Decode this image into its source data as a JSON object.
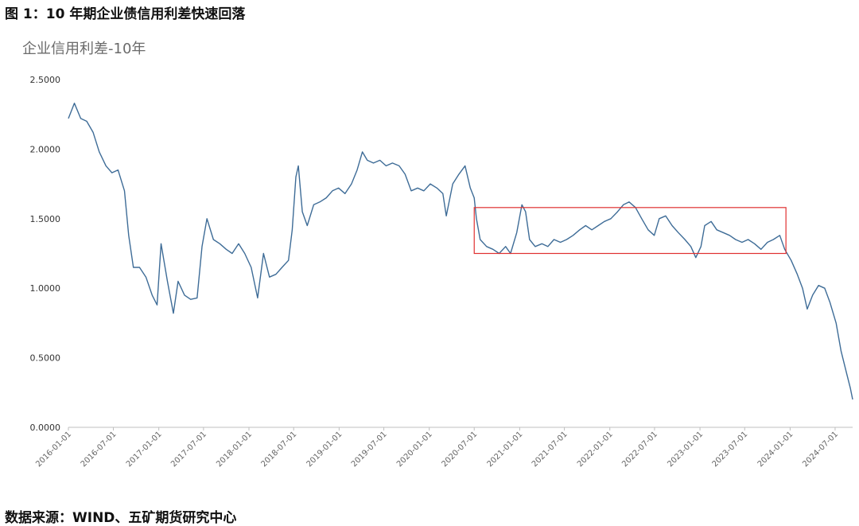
{
  "figure": {
    "caption": "图 1：10 年期企业债信用利差快速回落",
    "source": "数据来源：WIND、五矿期货研究中心"
  },
  "chart_data": {
    "type": "line",
    "title": "企业信用利差-10年",
    "xlabel": "",
    "ylabel": "",
    "ylim": [
      0,
      2.5
    ],
    "yticks": [
      "0.0000",
      "0.5000",
      "1.0000",
      "1.5000",
      "2.0000",
      "2.5000"
    ],
    "xticks": [
      "2016-01-01",
      "2016-07-01",
      "2017-01-01",
      "2017-07-01",
      "2018-01-01",
      "2018-07-01",
      "2019-01-01",
      "2019-07-01",
      "2020-01-01",
      "2020-07-01",
      "2021-01-01",
      "2021-07-01",
      "2022-01-01",
      "2022-07-01",
      "2023-01-01",
      "2023-07-01",
      "2024-01-01",
      "2024-07-01"
    ],
    "grid": false,
    "line_color": "#3e6c97",
    "highlight_box": {
      "x_start": "2020-07-01",
      "x_end": "2023-12-15",
      "y_low": 1.25,
      "y_high": 1.58,
      "color": "#e03030"
    },
    "series": [
      {
        "values": [
          [
            "2016-01-01",
            2.22
          ],
          [
            "2016-01-25",
            2.33
          ],
          [
            "2016-02-20",
            2.22
          ],
          [
            "2016-03-15",
            2.2
          ],
          [
            "2016-04-10",
            2.12
          ],
          [
            "2016-05-05",
            1.98
          ],
          [
            "2016-06-01",
            1.88
          ],
          [
            "2016-06-25",
            1.83
          ],
          [
            "2016-07-20",
            1.85
          ],
          [
            "2016-08-15",
            1.7
          ],
          [
            "2016-09-01",
            1.38
          ],
          [
            "2016-09-20",
            1.15
          ],
          [
            "2016-10-15",
            1.15
          ],
          [
            "2016-11-10",
            1.08
          ],
          [
            "2016-12-05",
            0.95
          ],
          [
            "2016-12-25",
            0.88
          ],
          [
            "2017-01-10",
            1.32
          ],
          [
            "2017-02-05",
            1.05
          ],
          [
            "2017-03-01",
            0.82
          ],
          [
            "2017-03-20",
            1.05
          ],
          [
            "2017-04-15",
            0.95
          ],
          [
            "2017-05-10",
            0.92
          ],
          [
            "2017-06-05",
            0.93
          ],
          [
            "2017-06-25",
            1.3
          ],
          [
            "2017-07-15",
            1.5
          ],
          [
            "2017-08-10",
            1.35
          ],
          [
            "2017-09-05",
            1.32
          ],
          [
            "2017-10-01",
            1.28
          ],
          [
            "2017-10-25",
            1.25
          ],
          [
            "2017-11-20",
            1.32
          ],
          [
            "2017-12-15",
            1.25
          ],
          [
            "2018-01-10",
            1.15
          ],
          [
            "2018-02-05",
            0.93
          ],
          [
            "2018-03-01",
            1.25
          ],
          [
            "2018-03-25",
            1.08
          ],
          [
            "2018-04-20",
            1.1
          ],
          [
            "2018-05-15",
            1.15
          ],
          [
            "2018-06-10",
            1.2
          ],
          [
            "2018-06-25",
            1.42
          ],
          [
            "2018-07-10",
            1.8
          ],
          [
            "2018-07-20",
            1.88
          ],
          [
            "2018-08-05",
            1.55
          ],
          [
            "2018-08-25",
            1.45
          ],
          [
            "2018-09-20",
            1.6
          ],
          [
            "2018-10-15",
            1.62
          ],
          [
            "2018-11-10",
            1.65
          ],
          [
            "2018-12-05",
            1.7
          ],
          [
            "2018-12-30",
            1.72
          ],
          [
            "2019-01-25",
            1.68
          ],
          [
            "2019-02-20",
            1.75
          ],
          [
            "2019-03-15",
            1.85
          ],
          [
            "2019-04-05",
            1.98
          ],
          [
            "2019-04-25",
            1.92
          ],
          [
            "2019-05-20",
            1.9
          ],
          [
            "2019-06-15",
            1.92
          ],
          [
            "2019-07-10",
            1.88
          ],
          [
            "2019-08-05",
            1.9
          ],
          [
            "2019-09-01",
            1.88
          ],
          [
            "2019-09-25",
            1.82
          ],
          [
            "2019-10-20",
            1.7
          ],
          [
            "2019-11-15",
            1.72
          ],
          [
            "2019-12-10",
            1.7
          ],
          [
            "2020-01-05",
            1.75
          ],
          [
            "2020-02-01",
            1.72
          ],
          [
            "2020-02-25",
            1.68
          ],
          [
            "2020-03-10",
            1.52
          ],
          [
            "2020-04-05",
            1.75
          ],
          [
            "2020-04-30",
            1.82
          ],
          [
            "2020-05-25",
            1.88
          ],
          [
            "2020-06-15",
            1.72
          ],
          [
            "2020-07-01",
            1.65
          ],
          [
            "2020-07-10",
            1.5
          ],
          [
            "2020-07-25",
            1.35
          ],
          [
            "2020-08-20",
            1.3
          ],
          [
            "2020-09-15",
            1.28
          ],
          [
            "2020-10-10",
            1.25
          ],
          [
            "2020-11-05",
            1.3
          ],
          [
            "2020-11-25",
            1.25
          ],
          [
            "2020-12-20",
            1.4
          ],
          [
            "2021-01-10",
            1.6
          ],
          [
            "2021-01-25",
            1.55
          ],
          [
            "2021-02-10",
            1.35
          ],
          [
            "2021-03-05",
            1.3
          ],
          [
            "2021-04-01",
            1.32
          ],
          [
            "2021-04-25",
            1.3
          ],
          [
            "2021-05-20",
            1.35
          ],
          [
            "2021-06-15",
            1.33
          ],
          [
            "2021-07-10",
            1.35
          ],
          [
            "2021-08-05",
            1.38
          ],
          [
            "2021-09-01",
            1.42
          ],
          [
            "2021-09-25",
            1.45
          ],
          [
            "2021-10-20",
            1.42
          ],
          [
            "2021-11-15",
            1.45
          ],
          [
            "2021-12-10",
            1.48
          ],
          [
            "2022-01-05",
            1.5
          ],
          [
            "2022-02-01",
            1.55
          ],
          [
            "2022-02-25",
            1.6
          ],
          [
            "2022-03-20",
            1.62
          ],
          [
            "2022-04-15",
            1.58
          ],
          [
            "2022-05-10",
            1.5
          ],
          [
            "2022-06-05",
            1.42
          ],
          [
            "2022-06-30",
            1.38
          ],
          [
            "2022-07-20",
            1.5
          ],
          [
            "2022-08-15",
            1.52
          ],
          [
            "2022-09-10",
            1.45
          ],
          [
            "2022-10-05",
            1.4
          ],
          [
            "2022-11-01",
            1.35
          ],
          [
            "2022-11-25",
            1.3
          ],
          [
            "2022-12-15",
            1.22
          ],
          [
            "2023-01-05",
            1.3
          ],
          [
            "2023-01-20",
            1.45
          ],
          [
            "2023-02-15",
            1.48
          ],
          [
            "2023-03-10",
            1.42
          ],
          [
            "2023-04-05",
            1.4
          ],
          [
            "2023-05-01",
            1.38
          ],
          [
            "2023-05-25",
            1.35
          ],
          [
            "2023-06-20",
            1.33
          ],
          [
            "2023-07-15",
            1.35
          ],
          [
            "2023-08-10",
            1.32
          ],
          [
            "2023-09-05",
            1.28
          ],
          [
            "2023-10-01",
            1.33
          ],
          [
            "2023-10-25",
            1.35
          ],
          [
            "2023-11-20",
            1.38
          ],
          [
            "2023-12-10",
            1.28
          ],
          [
            "2024-01-05",
            1.2
          ],
          [
            "2024-01-30",
            1.1
          ],
          [
            "2024-02-20",
            1.0
          ],
          [
            "2024-03-10",
            0.85
          ],
          [
            "2024-04-01",
            0.95
          ],
          [
            "2024-04-25",
            1.02
          ],
          [
            "2024-05-20",
            1.0
          ],
          [
            "2024-06-10",
            0.9
          ],
          [
            "2024-07-05",
            0.75
          ],
          [
            "2024-07-25",
            0.55
          ],
          [
            "2024-08-15",
            0.4
          ],
          [
            "2024-09-01",
            0.28
          ],
          [
            "2024-09-10",
            0.2
          ]
        ]
      }
    ]
  }
}
